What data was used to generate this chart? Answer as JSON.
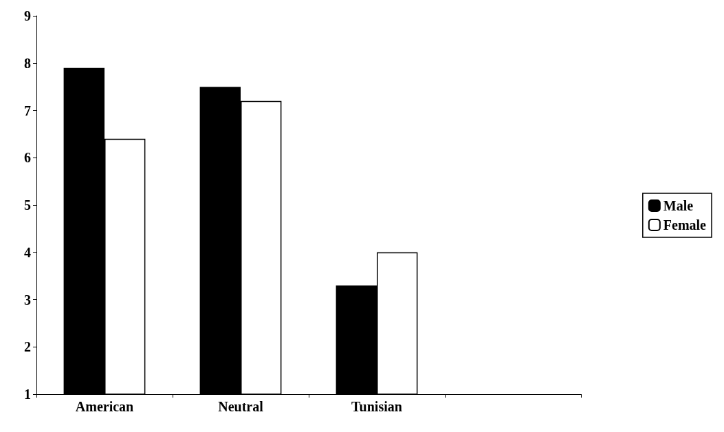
{
  "chart_data": {
    "type": "bar",
    "categories": [
      "American",
      "Neutral",
      "Tunisian",
      null
    ],
    "series": [
      {
        "name": "Male",
        "color": "#000000",
        "values": [
          7.9,
          7.5,
          3.3,
          null
        ]
      },
      {
        "name": "Female",
        "color": "#ffffff",
        "values": [
          6.4,
          7.2,
          4.0,
          null
        ]
      }
    ],
    "ylim": [
      1,
      9
    ],
    "yticks": [
      1,
      2,
      3,
      4,
      5,
      6,
      7,
      8,
      9
    ],
    "grid": false,
    "legend": "right"
  }
}
